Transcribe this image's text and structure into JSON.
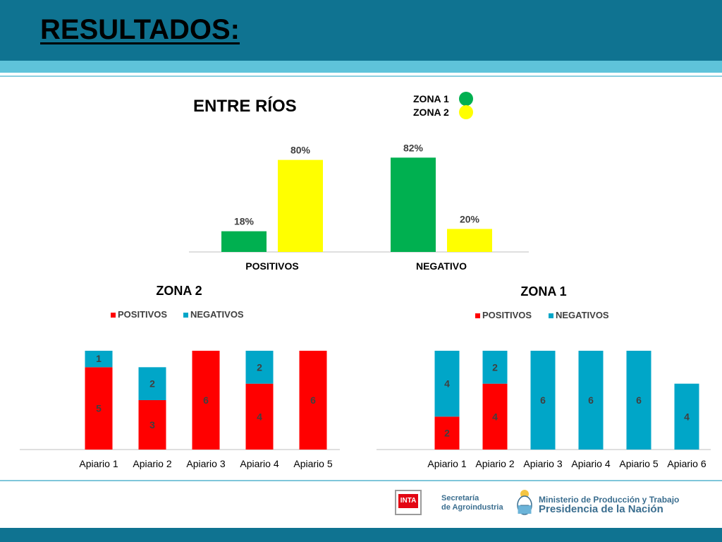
{
  "header": {
    "title": "RESULTADOS:"
  },
  "chart_data": [
    {
      "type": "bar",
      "title": "ENTRE RÍOS",
      "categories": [
        "POSITIVOS",
        "NEGATIVO"
      ],
      "series": [
        {
          "name": "ZONA 1",
          "color": "#00b050",
          "values": [
            18,
            82
          ],
          "labels": [
            "18%",
            "82%"
          ]
        },
        {
          "name": "ZONA 2",
          "color": "#ffff00",
          "values": [
            80,
            20
          ],
          "labels": [
            "80%",
            "20%"
          ]
        }
      ],
      "ylim": [
        0,
        100
      ],
      "legend_position": "top-right",
      "grid": false
    },
    {
      "type": "bar",
      "stacked": true,
      "title": "ZONA 2",
      "categories": [
        "Apiario 1",
        "Apiario 2",
        "Apiario 3",
        "Apiario 4",
        "Apiario 5"
      ],
      "series": [
        {
          "name": "POSITIVOS",
          "color": "#ff0000",
          "values": [
            5,
            3,
            6,
            4,
            6
          ]
        },
        {
          "name": "NEGATIVOS",
          "color": "#00a6c8",
          "values": [
            1,
            2,
            0,
            2,
            0
          ]
        }
      ],
      "ylim": [
        0,
        6
      ],
      "legend_position": "top",
      "grid": false
    },
    {
      "type": "bar",
      "stacked": true,
      "title": "ZONA 1",
      "categories": [
        "Apiario 1",
        "Apiario 2",
        "Apiario 3",
        "Apiario 4",
        "Apiario 5",
        "Apiario 6"
      ],
      "series": [
        {
          "name": "POSITIVOS",
          "color": "#ff0000",
          "values": [
            2,
            4,
            0,
            0,
            0,
            0
          ]
        },
        {
          "name": "NEGATIVOS",
          "color": "#00a6c8",
          "values": [
            4,
            2,
            6,
            6,
            6,
            4
          ]
        }
      ],
      "ylim": [
        0,
        6
      ],
      "legend_position": "top",
      "grid": false
    }
  ],
  "footer": {
    "inta_logo": "INTA",
    "secretaria_line1": "Secretaría",
    "secretaria_line2": "de Agroindustria",
    "ministerio": "Ministerio de Producción y Trabajo",
    "presidencia": "Presidencia de la Nación",
    "crest_icon": "argentina-coat-of-arms-icon"
  }
}
